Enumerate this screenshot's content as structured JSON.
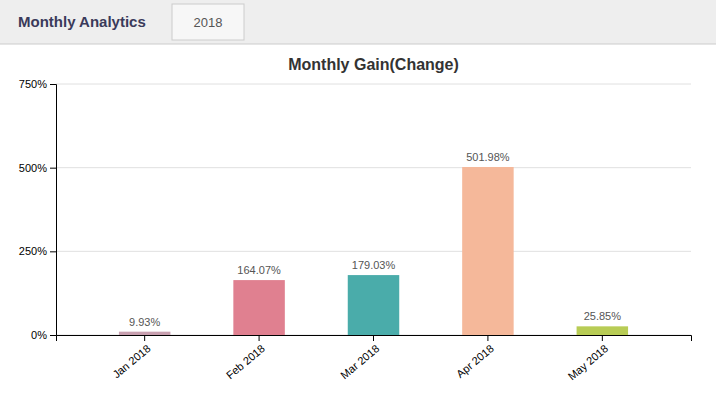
{
  "chart_data": {
    "type": "bar",
    "title": "Monthly Gain(Change)",
    "annotations": [
      "Monthly Analytics",
      "2018"
    ],
    "categories": [
      "Jan 2018",
      "Feb 2018",
      "Mar 2018",
      "Apr 2018",
      "May 2018"
    ],
    "values": [
      9.93,
      164.07,
      179.03,
      501.98,
      25.85
    ],
    "value_labels": [
      "9.93%",
      "164.07%",
      "179.03%",
      "501.98%",
      "25.85%"
    ],
    "data_labels": true,
    "colors": [
      "#c8a0b0",
      "#e08090",
      "#4aacaa",
      "#f5b89a",
      "#b8cc55"
    ],
    "ylim": [
      0,
      750
    ],
    "yticks": [
      {
        "value": 0,
        "label": "0%"
      },
      {
        "value": 250,
        "label": "250%"
      },
      {
        "value": 500,
        "label": "500%"
      },
      {
        "value": 750,
        "label": "750%"
      }
    ],
    "grid": true
  }
}
